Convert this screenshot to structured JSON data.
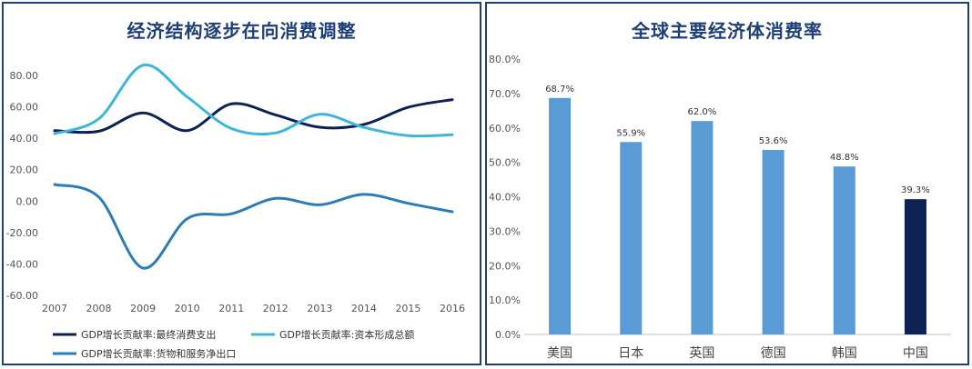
{
  "chart_data": [
    {
      "type": "line",
      "title": "经济结构逐步在向消费调整",
      "x": [
        "2007",
        "2008",
        "2009",
        "2010",
        "2011",
        "2012",
        "2013",
        "2014",
        "2015",
        "2016"
      ],
      "ylim": [
        -60,
        80
      ],
      "yticks": [
        "80.00",
        "60.00",
        "40.00",
        "20.00",
        "0.00",
        "-20.00",
        "-40.00",
        "-60.00"
      ],
      "grid": false,
      "legend_position": "bottom",
      "series": [
        {
          "name": "GDP增长贡献率:最终消费支出",
          "color": "#0d2252",
          "values": [
            44.9,
            44.5,
            56.1,
            44.9,
            61.9,
            54.9,
            47.0,
            48.8,
            59.7,
            64.6
          ]
        },
        {
          "name": "GDP增长贡献率:资本形成总额",
          "color": "#3fb5dc",
          "values": [
            42.9,
            52.4,
            86.5,
            66.3,
            46.2,
            43.4,
            55.3,
            46.9,
            41.7,
            42.2
          ]
        },
        {
          "name": "GDP增长贡献率:货物和服务净出口",
          "color": "#2e7cb5",
          "values": [
            10.6,
            2.6,
            -42.6,
            -11.2,
            -8.1,
            1.7,
            -2.3,
            4.3,
            -1.4,
            -6.8
          ]
        }
      ]
    },
    {
      "type": "bar",
      "title": "全球主要经济体消费率",
      "categories": [
        "美国",
        "日本",
        "英国",
        "德国",
        "韩国",
        "中国"
      ],
      "values": [
        68.7,
        55.9,
        62.0,
        53.6,
        48.8,
        39.3
      ],
      "value_labels": [
        "68.7%",
        "55.9%",
        "62.0%",
        "53.6%",
        "48.8%",
        "39.3%"
      ],
      "colors": [
        "#5b9bd5",
        "#5b9bd5",
        "#5b9bd5",
        "#5b9bd5",
        "#5b9bd5",
        "#0d2252"
      ],
      "ylim": [
        0,
        80
      ],
      "yticks": [
        "80.0%",
        "70.0%",
        "60.0%",
        "50.0%",
        "40.0%",
        "30.0%",
        "20.0%",
        "10.0%",
        "0.0%"
      ],
      "grid": false
    }
  ]
}
